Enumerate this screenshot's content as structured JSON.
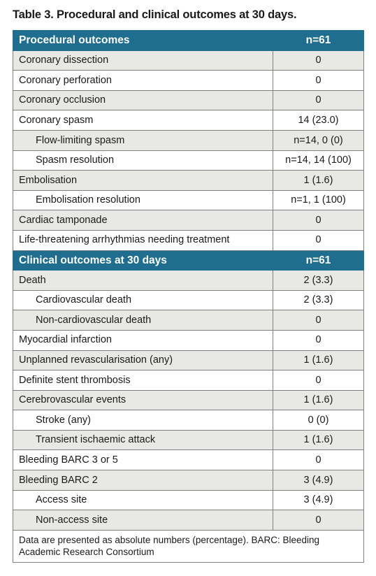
{
  "title": "Table 3. Procedural and clinical outcomes at 30 days.",
  "colors": {
    "header_bg": "#1f6e8f",
    "header_text": "#ffffff",
    "shade_bg": "#e8e8e5",
    "border": "#7f7f7f"
  },
  "procedural": {
    "header": {
      "label": "Procedural outcomes",
      "value": "n=61"
    },
    "rows": [
      {
        "label": "Coronary dissection",
        "value": "0",
        "indent": false,
        "shaded": true
      },
      {
        "label": "Coronary perforation",
        "value": "0",
        "indent": false,
        "shaded": false
      },
      {
        "label": "Coronary occlusion",
        "value": "0",
        "indent": false,
        "shaded": true
      },
      {
        "label": "Coronary spasm",
        "value": "14 (23.0)",
        "indent": false,
        "shaded": false
      },
      {
        "label": "Flow-limiting spasm",
        "value": "n=14, 0 (0)",
        "indent": true,
        "shaded": true
      },
      {
        "label": "Spasm resolution",
        "value": "n=14, 14 (100)",
        "indent": true,
        "shaded": false
      },
      {
        "label": "Embolisation",
        "value": "1 (1.6)",
        "indent": false,
        "shaded": true
      },
      {
        "label": "Embolisation resolution",
        "value": "n=1, 1 (100)",
        "indent": true,
        "shaded": false
      },
      {
        "label": "Cardiac tamponade",
        "value": "0",
        "indent": false,
        "shaded": true
      },
      {
        "label": "Life-threatening arrhythmias needing treatment",
        "value": "0",
        "indent": false,
        "shaded": false
      }
    ]
  },
  "clinical": {
    "header": {
      "label": "Clinical outcomes at 30 days",
      "value": "n=61"
    },
    "rows": [
      {
        "label": "Death",
        "value": "2 (3.3)",
        "indent": false,
        "shaded": true
      },
      {
        "label": "Cardiovascular death",
        "value": "2 (3.3)",
        "indent": true,
        "shaded": false
      },
      {
        "label": "Non-cardiovascular death",
        "value": "0",
        "indent": true,
        "shaded": true
      },
      {
        "label": "Myocardial infarction",
        "value": "0",
        "indent": false,
        "shaded": false
      },
      {
        "label": "Unplanned revascularisation (any)",
        "value": "1 (1.6)",
        "indent": false,
        "shaded": true
      },
      {
        "label": "Definite stent thrombosis",
        "value": "0",
        "indent": false,
        "shaded": false
      },
      {
        "label": "Cerebrovascular events",
        "value": "1 (1.6)",
        "indent": false,
        "shaded": true
      },
      {
        "label": "Stroke (any)",
        "value": "0 (0)",
        "indent": true,
        "shaded": false
      },
      {
        "label": "Transient ischaemic attack",
        "value": "1 (1.6)",
        "indent": true,
        "shaded": true
      },
      {
        "label": "Bleeding BARC 3 or 5",
        "value": "0",
        "indent": false,
        "shaded": false
      },
      {
        "label": "Bleeding BARC 2",
        "value": "3 (4.9)",
        "indent": false,
        "shaded": true
      },
      {
        "label": "Access site",
        "value": "3 (4.9)",
        "indent": true,
        "shaded": false
      },
      {
        "label": "Non-access site",
        "value": "0",
        "indent": true,
        "shaded": true
      }
    ]
  },
  "footnote": "Data are presented as absolute numbers (percentage). BARC: Bleeding Academic Research Consortium"
}
